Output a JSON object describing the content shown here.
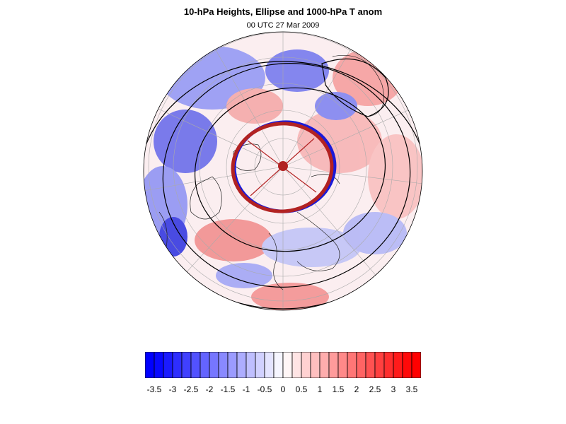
{
  "title": "10-hPa Heights, Ellipse and 1000-hPa T anom",
  "subtitle": "00 UTC 27 Mar 2009",
  "map": {
    "projection": "orthographic polar (Northern Hemisphere)",
    "field": "1000-hPa temperature anomaly",
    "contours": "10-hPa geopotential height",
    "overlay": "vortex ellipse",
    "colormap": {
      "negative": "#0000ff",
      "zero": "#ffffff",
      "positive": "#ff0000"
    }
  },
  "colorbar": {
    "min": -3.5,
    "max": 3.5,
    "step": 0.25,
    "labels": [
      "-3.5",
      "-3",
      "-2.5",
      "-2",
      "-1.5",
      "-1",
      "-0.5",
      "0",
      "0.5",
      "1",
      "1.5",
      "2",
      "2.5",
      "3",
      "3.5"
    ]
  }
}
